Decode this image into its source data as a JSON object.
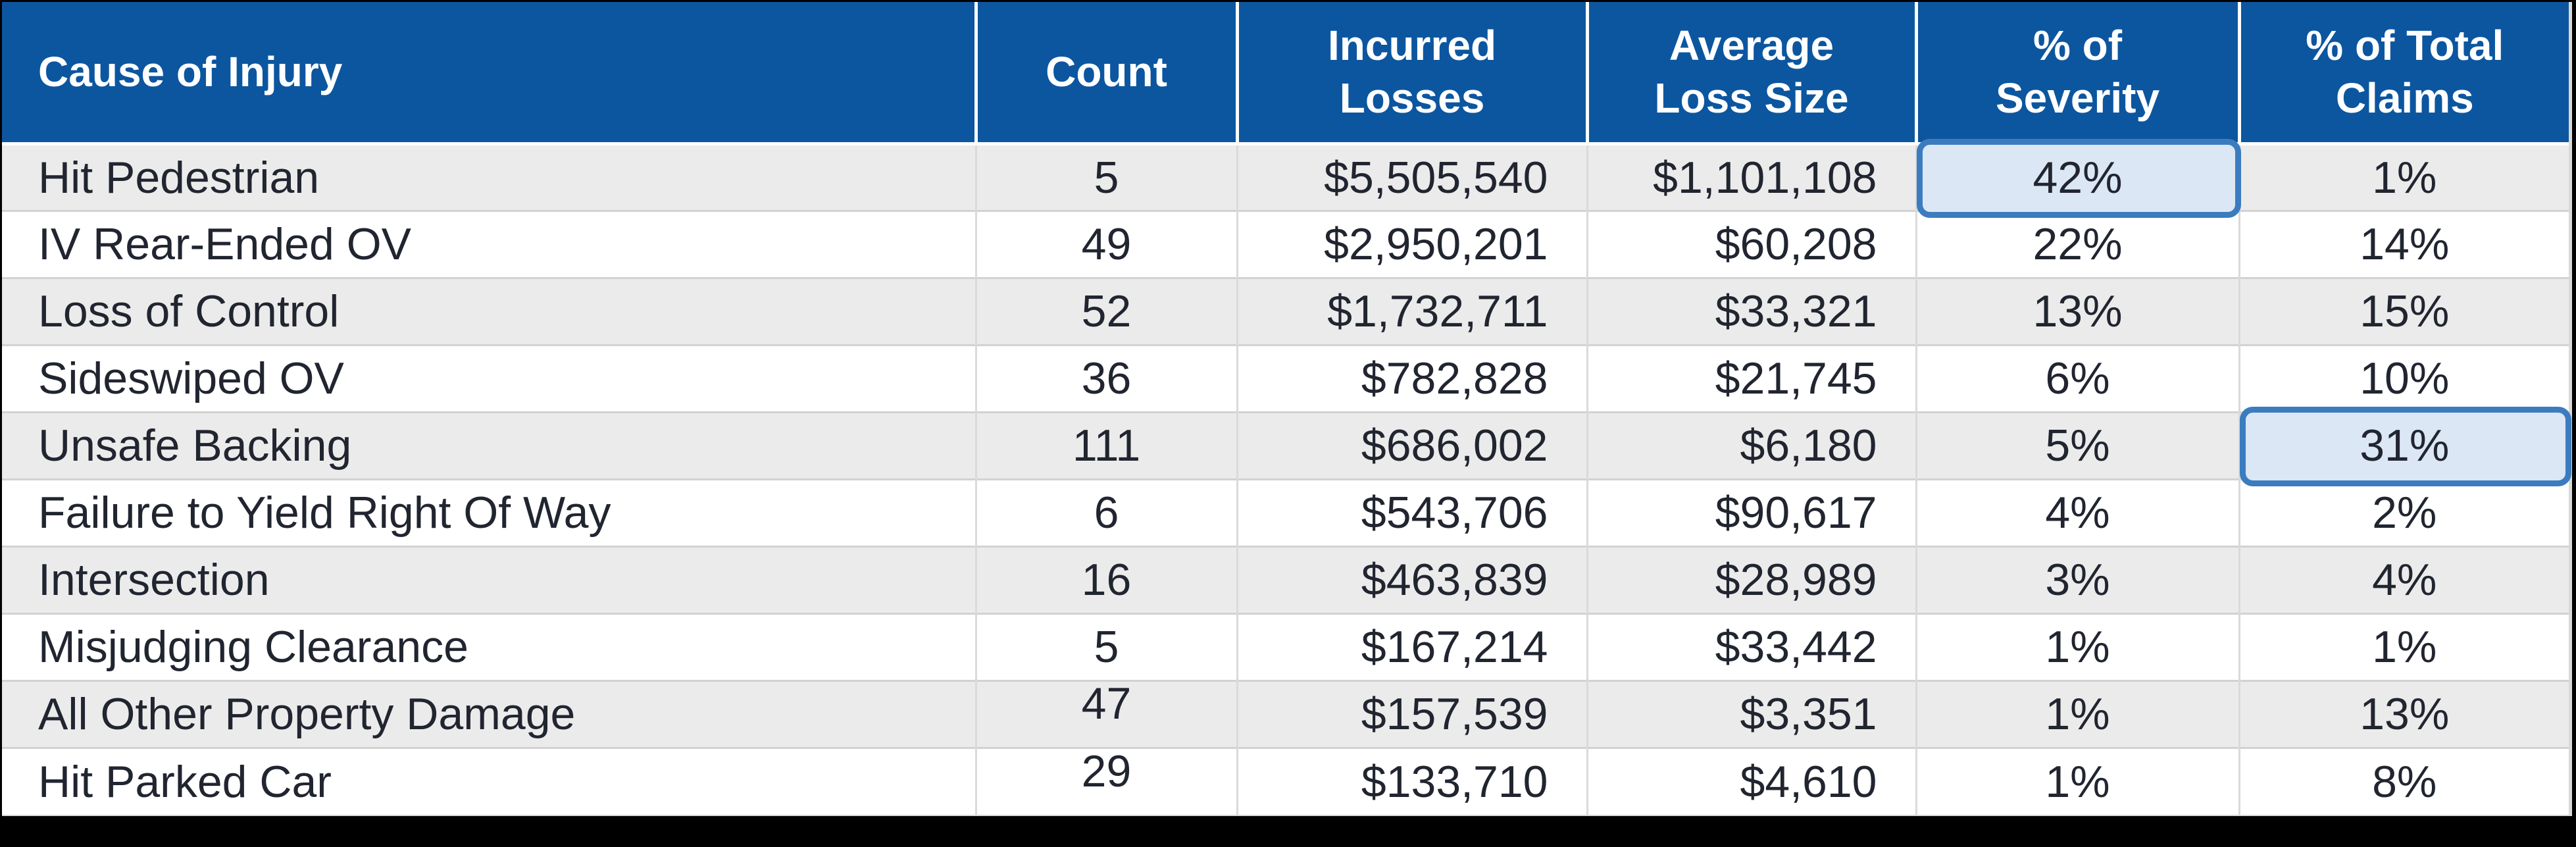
{
  "colors": {
    "header_bg": "#0c56a0",
    "header_text": "#ffffff",
    "row_alt": "#ebebeb",
    "row_white": "#ffffff",
    "grid_line": "#d2d2d2",
    "text": "#212530",
    "highlight_fill": "#dbe7f5",
    "highlight_border": "#3b7cbf",
    "frame_bar": "#000000"
  },
  "table": {
    "columns": [
      {
        "key": "cause",
        "label": "Cause of Injury",
        "align": "left"
      },
      {
        "key": "count",
        "label": "Count",
        "align": "center"
      },
      {
        "key": "incurred",
        "label": "Incurred\nLosses",
        "align": "right"
      },
      {
        "key": "avg",
        "label": "Average\nLoss Size",
        "align": "right"
      },
      {
        "key": "severity",
        "label": "% of\nSeverity",
        "align": "center"
      },
      {
        "key": "claims",
        "label": "% of Total\nClaims",
        "align": "center"
      }
    ],
    "rows": [
      {
        "cause": "Hit Pedestrian",
        "count": "5",
        "incurred": "$5,505,540",
        "avg": "$1,101,108",
        "severity": "42%",
        "claims": "1%",
        "highlight": "severity"
      },
      {
        "cause": "IV Rear-Ended OV",
        "count": "49",
        "incurred": "$2,950,201",
        "avg": "$60,208",
        "severity": "22%",
        "claims": "14%",
        "highlight": null
      },
      {
        "cause": "Loss of Control",
        "count": "52",
        "incurred": "$1,732,711",
        "avg": "$33,321",
        "severity": "13%",
        "claims": "15%",
        "highlight": null
      },
      {
        "cause": "Sideswiped OV",
        "count": "36",
        "incurred": "$782,828",
        "avg": "$21,745",
        "severity": "6%",
        "claims": "10%",
        "highlight": null
      },
      {
        "cause": "Unsafe Backing",
        "count": "111",
        "incurred": "$686,002",
        "avg": "$6,180",
        "severity": "5%",
        "claims": "31%",
        "highlight": "claims"
      },
      {
        "cause": "Failure to Yield Right Of Way",
        "count": "6",
        "incurred": "$543,706",
        "avg": "$90,617",
        "severity": "4%",
        "claims": "2%",
        "highlight": null
      },
      {
        "cause": "Intersection",
        "count": "16",
        "incurred": "$463,839",
        "avg": "$28,989",
        "severity": "3%",
        "claims": "4%",
        "highlight": null
      },
      {
        "cause": "Misjudging Clearance",
        "count": "5",
        "incurred": "$167,214",
        "avg": "$33,442",
        "severity": "1%",
        "claims": "1%",
        "highlight": null
      },
      {
        "cause": "All Other Property Damage",
        "count": "47",
        "incurred": "$157,539",
        "avg": "$3,351",
        "severity": "1%",
        "claims": "13%",
        "highlight": null
      },
      {
        "cause": "Hit Parked Car",
        "count": "29",
        "incurred": "$133,710",
        "avg": "$4,610",
        "severity": "1%",
        "claims": "8%",
        "highlight": null
      }
    ]
  },
  "chart_data": {
    "type": "table",
    "title": "",
    "columns": [
      "Cause of Injury",
      "Count",
      "Incurred Losses",
      "Average Loss Size",
      "% of Severity",
      "% of Total Claims"
    ],
    "categories": [
      "Hit Pedestrian",
      "IV Rear-Ended OV",
      "Loss of Control",
      "Sideswiped OV",
      "Unsafe Backing",
      "Failure to Yield Right Of Way",
      "Intersection",
      "Misjudging Clearance",
      "All Other Property Damage",
      "Hit Parked Car"
    ],
    "series": [
      {
        "name": "Count",
        "values": [
          5,
          49,
          52,
          36,
          111,
          6,
          16,
          5,
          47,
          29
        ]
      },
      {
        "name": "Incurred Losses",
        "values": [
          5505540,
          2950201,
          1732711,
          782828,
          686002,
          543706,
          463839,
          167214,
          157539,
          133710
        ]
      },
      {
        "name": "Average Loss Size",
        "values": [
          1101108,
          60208,
          33321,
          21745,
          6180,
          90617,
          28989,
          33442,
          3351,
          4610
        ]
      },
      {
        "name": "% of Severity",
        "values": [
          42,
          22,
          13,
          6,
          5,
          4,
          3,
          1,
          1,
          1
        ]
      },
      {
        "name": "% of Total Claims",
        "values": [
          1,
          14,
          15,
          10,
          31,
          2,
          4,
          1,
          13,
          8
        ]
      }
    ],
    "annotations": [
      "% of Severity = 42% for Hit Pedestrian is highlighted",
      "% of Total Claims = 31% for Unsafe Backing is highlighted"
    ],
    "layout": {
      "header_fill": "#0c56a0",
      "banding": "odd rows #ebebeb",
      "grid": true
    }
  }
}
